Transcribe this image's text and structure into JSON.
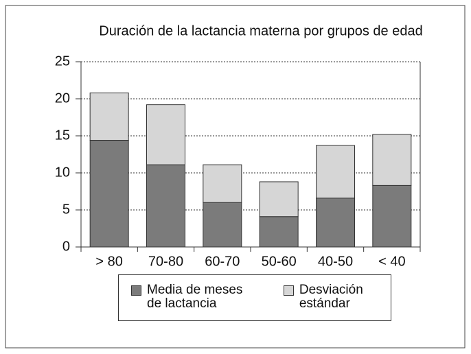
{
  "chart_data": {
    "type": "bar",
    "stacked": true,
    "title": "Duración de la lactancia materna por grupos de edad",
    "categories": [
      "> 80",
      "70-80",
      "60-70",
      "50-60",
      "40-50",
      "< 40"
    ],
    "series": [
      {
        "name": "Media de meses de lactancia",
        "color": "#7b7b7b",
        "values": [
          14.4,
          11.1,
          6.0,
          4.1,
          6.6,
          8.3
        ]
      },
      {
        "name": "Desviación estándar",
        "color": "#d6d6d6",
        "values": [
          6.4,
          8.1,
          5.1,
          4.7,
          7.1,
          6.9
        ]
      }
    ],
    "ylim": [
      0,
      25
    ],
    "yticks": [
      0,
      5,
      10,
      15,
      20,
      25
    ],
    "grid": true
  }
}
